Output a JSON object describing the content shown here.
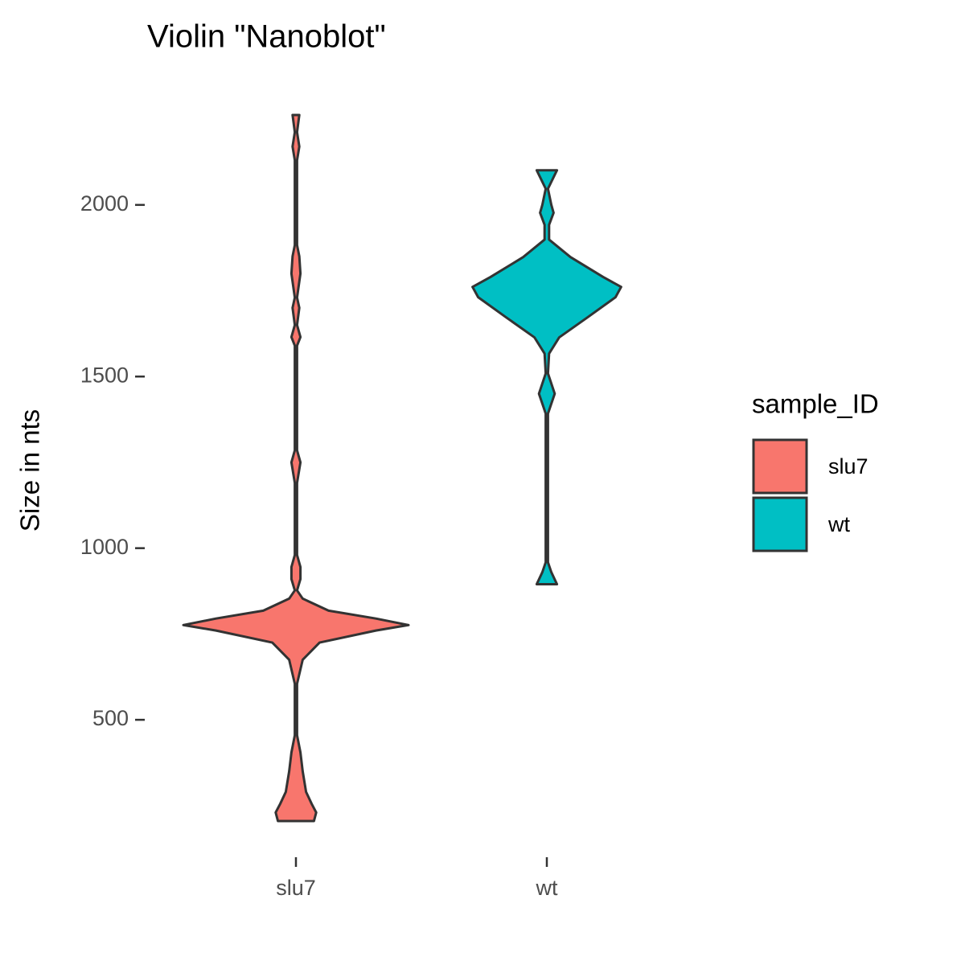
{
  "chart_data": {
    "type": "violin",
    "title": "Violin \"Nanoblot\"",
    "y_label": "Size in nts",
    "categories": [
      "slu7",
      "wt"
    ],
    "legend_title": "sample_ID",
    "series": [
      {
        "name": "slu7",
        "color": "#F8766D",
        "y": [
          205,
          230,
          255,
          290,
          350,
          405,
          455,
          605,
          675,
          725,
          760,
          776,
          795,
          818,
          853,
          877,
          910,
          945,
          980,
          1190,
          1250,
          1285,
          1590,
          1615,
          1650,
          1700,
          1730,
          1800,
          1850,
          1883,
          2130,
          2170,
          2212,
          2262
        ],
        "density": [
          0.16,
          0.18,
          0.14,
          0.09,
          0.06,
          0.04,
          0.01,
          0.01,
          0.06,
          0.21,
          0.71,
          1,
          0.71,
          0.29,
          0.06,
          0.01,
          0.04,
          0.04,
          0.01,
          0.01,
          0.04,
          0.01,
          0.01,
          0.04,
          0.01,
          0.03,
          0.01,
          0.04,
          0.03,
          0.01,
          0.01,
          0.03,
          0.01,
          0.03
        ]
      },
      {
        "name": "wt",
        "color": "#00BFC4",
        "y": [
          895,
          930,
          959,
          1392,
          1450,
          1509,
          1567,
          1614,
          1672,
          1731,
          1761,
          1790,
          1848,
          1899,
          1942,
          1977,
          2000,
          2047,
          2101
        ],
        "density": [
          0.09,
          0.04,
          0.01,
          0.01,
          0.07,
          0.01,
          0.02,
          0.11,
          0.36,
          0.61,
          0.66,
          0.5,
          0.21,
          0.02,
          0.02,
          0.06,
          0.04,
          0.01,
          0.09
        ]
      }
    ],
    "ylim": [
      102,
      2365
    ],
    "yticks": [
      500,
      1000,
      1500,
      2000
    ],
    "grid": false
  }
}
